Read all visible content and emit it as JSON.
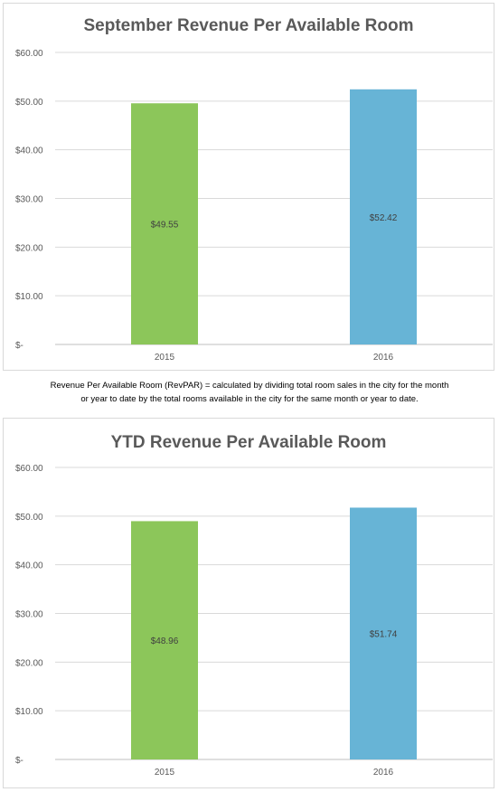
{
  "chart_data": [
    {
      "type": "bar",
      "title": "September Revenue Per Available Room",
      "categories": [
        "2015",
        "2016"
      ],
      "values": [
        49.55,
        52.42
      ],
      "value_labels": [
        "$49.55",
        "$52.42"
      ],
      "colors": [
        "#8cc65a",
        "#67b4d6"
      ],
      "yticks": [
        "$-",
        "$10.00",
        "$20.00",
        "$30.00",
        "$40.00",
        "$50.00",
        "$60.00"
      ],
      "ylim": [
        0,
        60
      ],
      "grid": true,
      "legend": "none"
    },
    {
      "type": "bar",
      "title": "YTD Revenue Per Available Room",
      "categories": [
        "2015",
        "2016"
      ],
      "values": [
        48.96,
        51.74
      ],
      "value_labels": [
        "$48.96",
        "$51.74"
      ],
      "colors": [
        "#8cc65a",
        "#67b4d6"
      ],
      "yticks": [
        "$-",
        "$10.00",
        "$20.00",
        "$30.00",
        "$40.00",
        "$50.00",
        "$60.00"
      ],
      "ylim": [
        0,
        60
      ],
      "grid": true,
      "legend": "none"
    }
  ],
  "footnote": {
    "line1": "Revenue Per Available Room (RevPAR) = calculated by dividing total room sales in the city for the month",
    "line2": "or year to date by the total rooms available in the city for the same month or year to date."
  }
}
